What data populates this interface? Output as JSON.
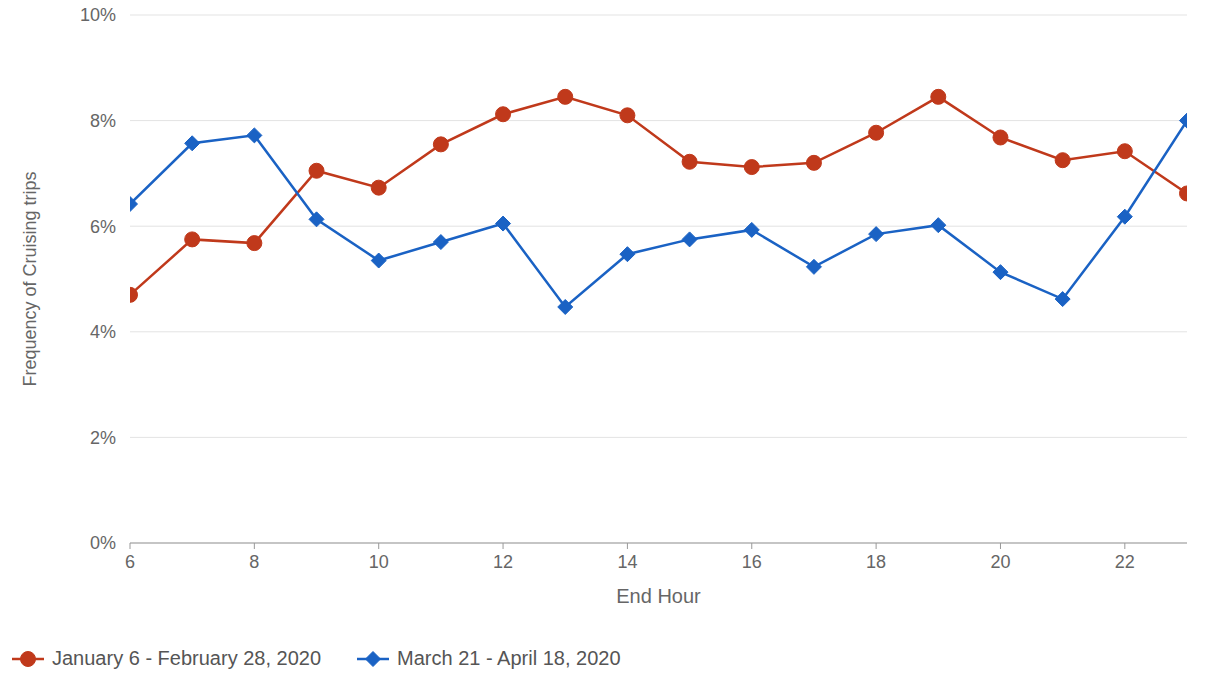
{
  "chart_data": {
    "type": "line",
    "x_label": "End Hour",
    "y_label": "Frequency of Cruising trips",
    "x": [
      6,
      7,
      8,
      9,
      10,
      11,
      12,
      13,
      14,
      15,
      16,
      17,
      18,
      19,
      20,
      21,
      22,
      23
    ],
    "series": [
      {
        "name": "January 6 - February 28, 2020",
        "color": "#c0391b",
        "marker": "circle",
        "line_style": "solid",
        "values": [
          4.7,
          5.75,
          5.68,
          7.05,
          6.73,
          7.55,
          8.12,
          8.45,
          8.1,
          7.22,
          7.12,
          7.2,
          7.77,
          8.45,
          7.68,
          7.25,
          7.42,
          6.62
        ]
      },
      {
        "name": "March 21 - April 18, 2020",
        "color": "#1a62c4",
        "marker": "diamond",
        "line_style": "solid",
        "values": [
          6.42,
          7.57,
          7.72,
          6.13,
          5.35,
          5.7,
          6.05,
          4.47,
          5.47,
          5.75,
          5.93,
          5.23,
          5.85,
          6.02,
          5.13,
          4.62,
          6.18,
          8.0
        ]
      }
    ],
    "xlim": [
      6,
      23
    ],
    "xticks": [
      6,
      8,
      10,
      12,
      14,
      16,
      18,
      20,
      22
    ],
    "ylim": [
      0,
      10
    ],
    "yticks": [
      {
        "value": 0,
        "label": "0%"
      },
      {
        "value": 2,
        "label": "2%"
      },
      {
        "value": 4,
        "label": "4%"
      },
      {
        "value": 6,
        "label": "6%"
      },
      {
        "value": 8,
        "label": "8%"
      },
      {
        "value": 10,
        "label": "10%"
      }
    ],
    "grid": true,
    "legend": "bottom left"
  }
}
